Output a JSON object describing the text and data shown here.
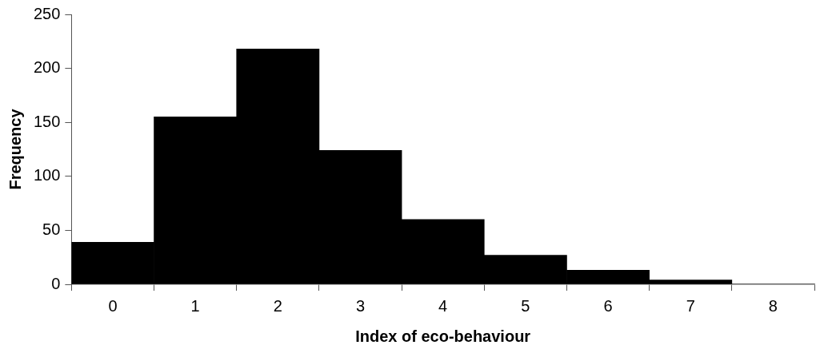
{
  "chart_data": {
    "type": "bar",
    "xlabel": "Index of eco-behaviour",
    "ylabel": "Frequency",
    "categories": [
      "0",
      "1",
      "2",
      "3",
      "4",
      "5",
      "6",
      "7",
      "8"
    ],
    "values": [
      39,
      155,
      218,
      124,
      60,
      27,
      13,
      4,
      0
    ],
    "color": "#000000",
    "ylim": [
      0,
      250
    ],
    "yticks": [
      0,
      50,
      100,
      150,
      200,
      250
    ],
    "grid": false,
    "legend": false
  }
}
